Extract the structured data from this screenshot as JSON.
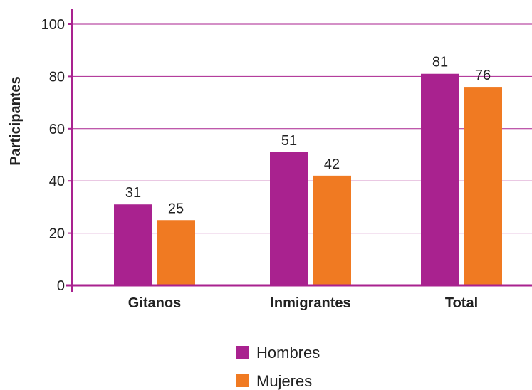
{
  "chart_data": {
    "type": "bar",
    "title": "",
    "xlabel": "",
    "ylabel": "Participantes",
    "ylim": [
      0,
      100
    ],
    "yticks": [
      "0",
      "20",
      "40",
      "60",
      "80",
      "100"
    ],
    "categories": [
      "Gitanos",
      "Inmigrantes",
      "Total"
    ],
    "series": [
      {
        "name": "Hombres",
        "color": "#a9228f",
        "values": [
          31,
          51,
          81
        ],
        "labels": [
          "31",
          "51",
          "81"
        ]
      },
      {
        "name": "Mujeres",
        "color": "#f07a22",
        "values": [
          25,
          42,
          76
        ],
        "labels": [
          "25",
          "42",
          "76"
        ]
      }
    ],
    "grid": true,
    "grid_color": "#a9228f",
    "axis_color": "#a9228f",
    "legend_position": "bottom-center"
  }
}
